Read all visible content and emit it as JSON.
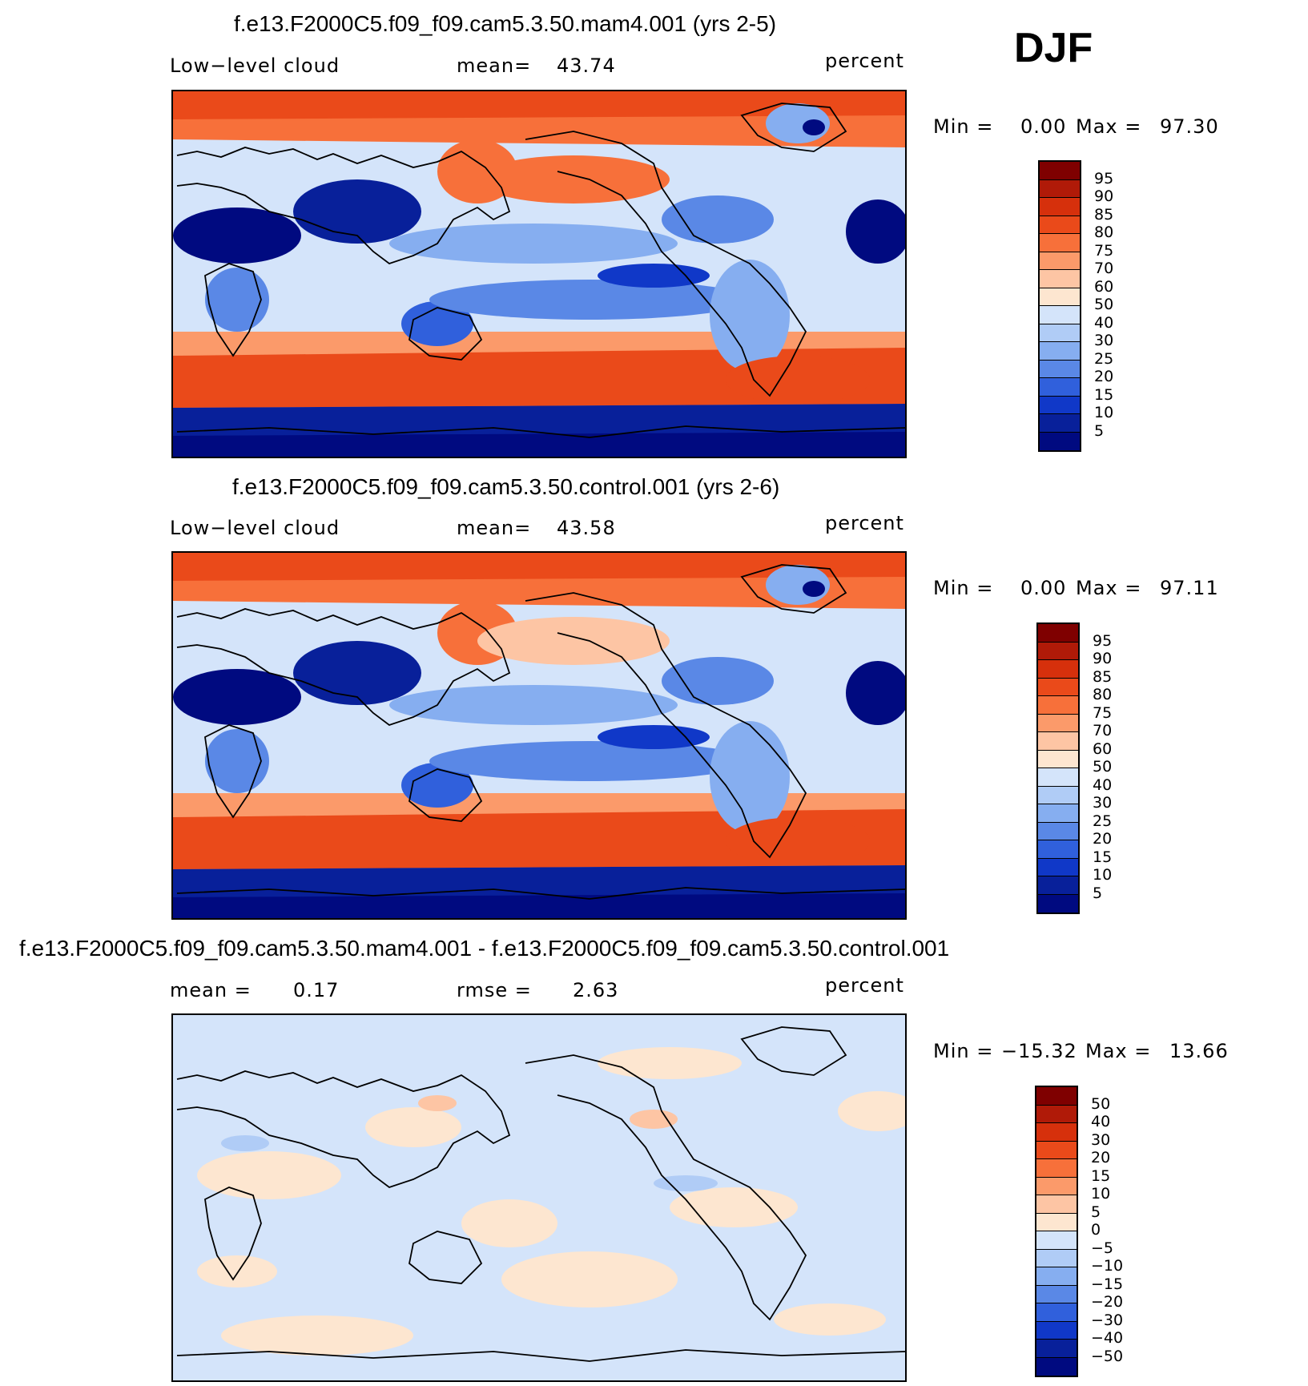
{
  "season": "DJF",
  "panels": [
    {
      "title": "f.e13.F2000C5.f09_f09.cam5.3.50.mam4.001 (yrs 2-5)",
      "left_label": "Low−level cloud",
      "stat_label": "mean=",
      "stat_value": "43.74",
      "units": "percent",
      "min_label": "Min =",
      "min_value": "0.00",
      "max_label": "Max =",
      "max_value": "97.30",
      "levels": [
        "95",
        "90",
        "85",
        "80",
        "75",
        "70",
        "60",
        "50",
        "40",
        "30",
        "25",
        "20",
        "15",
        "10",
        "5"
      ],
      "kind": "mam4"
    },
    {
      "title": "f.e13.F2000C5.f09_f09.cam5.3.50.control.001 (yrs 2-6)",
      "left_label": "Low−level cloud",
      "stat_label": "mean=",
      "stat_value": "43.58",
      "units": "percent",
      "min_label": "Min =",
      "min_value": "0.00",
      "max_label": "Max =",
      "max_value": "97.11",
      "levels": [
        "95",
        "90",
        "85",
        "80",
        "75",
        "70",
        "60",
        "50",
        "40",
        "30",
        "25",
        "20",
        "15",
        "10",
        "5"
      ],
      "kind": "control"
    },
    {
      "title": "f.e13.F2000C5.f09_f09.cam5.3.50.mam4.001 - f.e13.F2000C5.f09_f09.cam5.3.50.control.001",
      "left_label": "mean =",
      "left_value": "0.17",
      "stat_label": "rmse =",
      "stat_value": "2.63",
      "units": "percent",
      "min_label": "Min =",
      "min_value": "−15.32",
      "max_label": "Max =",
      "max_value": "13.66",
      "levels": [
        "50",
        "40",
        "30",
        "20",
        "15",
        "10",
        "5",
        "0",
        "−5",
        "−10",
        "−15",
        "−20",
        "−30",
        "−40",
        "−50"
      ],
      "kind": "diff"
    }
  ],
  "colors": {
    "scale": [
      "#7f0000",
      "#b01a08",
      "#d6300c",
      "#ea4a1a",
      "#f7703a",
      "#fb9a6a",
      "#fdc5a4",
      "#fde6d0",
      "#d4e4fa",
      "#b0ccf6",
      "#86aef0",
      "#5a88e6",
      "#3060dc",
      "#1038c8",
      "#08209a",
      "#000a80"
    ]
  }
}
